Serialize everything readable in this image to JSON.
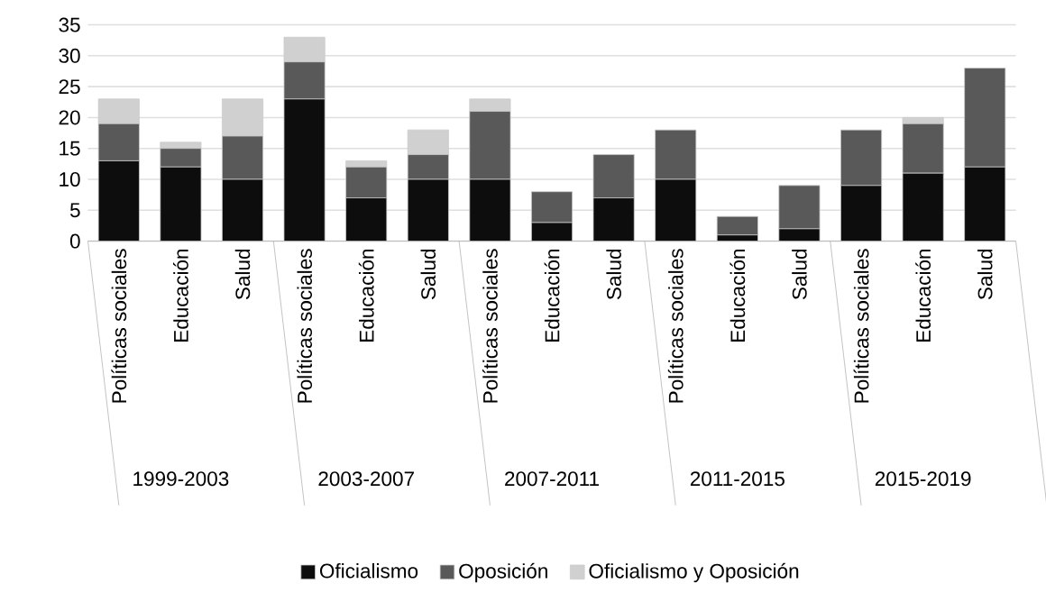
{
  "chart_data": {
    "type": "bar",
    "stacked": true,
    "categories": [
      "Políticas sociales",
      "Educación",
      "Salud",
      "Políticas sociales",
      "Educación",
      "Salud",
      "Políticas sociales",
      "Educación",
      "Salud",
      "Políticas sociales",
      "Educación",
      "Salud",
      "Políticas sociales",
      "Educación",
      "Salud"
    ],
    "series": [
      {
        "name": "Oficialismo",
        "color": "#0d0d0d",
        "values": [
          13,
          12,
          10,
          23,
          7,
          10,
          10,
          3,
          7,
          10,
          1,
          2,
          9,
          11,
          12
        ]
      },
      {
        "name": "Oposición",
        "color": "#595959",
        "values": [
          6,
          3,
          7,
          6,
          5,
          4,
          11,
          5,
          7,
          8,
          3,
          7,
          9,
          8,
          16
        ]
      },
      {
        "name": "Oficialismo y Oposición",
        "color": "#d0d0d0",
        "values": [
          4,
          1,
          6,
          4,
          1,
          4,
          2,
          0,
          0,
          0,
          0,
          0,
          0,
          1,
          0
        ]
      }
    ],
    "annotations": [
      "1999-2003",
      "2003-2007",
      "2007-2011",
      "2011-2015",
      "2015-2019"
    ],
    "ylim": [
      0,
      35
    ],
    "yticks": [
      0,
      5,
      10,
      15,
      20,
      25,
      30,
      35
    ],
    "grid": "y",
    "legend": "bottom"
  }
}
